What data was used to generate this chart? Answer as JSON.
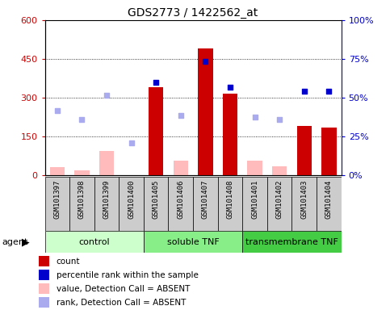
{
  "title": "GDS2773 / 1422562_at",
  "samples": [
    "GSM101397",
    "GSM101398",
    "GSM101399",
    "GSM101400",
    "GSM101405",
    "GSM101406",
    "GSM101407",
    "GSM101408",
    "GSM101401",
    "GSM101402",
    "GSM101403",
    "GSM101404"
  ],
  "groups": [
    {
      "label": "control",
      "start": 0,
      "end": 4,
      "color": "#ccffcc"
    },
    {
      "label": "soluble TNF",
      "start": 4,
      "end": 8,
      "color": "#88ee88"
    },
    {
      "label": "transmembrane TNF",
      "start": 8,
      "end": 12,
      "color": "#44cc44"
    }
  ],
  "count_present": [
    null,
    null,
    null,
    null,
    340,
    null,
    490,
    315,
    null,
    null,
    190,
    185
  ],
  "count_absent": [
    30,
    18,
    95,
    null,
    null,
    55,
    null,
    null,
    55,
    35,
    null,
    null
  ],
  "rank_present": [
    null,
    null,
    null,
    null,
    360,
    null,
    440,
    340,
    null,
    null,
    325,
    325
  ],
  "rank_absent": [
    250,
    215,
    310,
    125,
    null,
    230,
    null,
    null,
    225,
    215,
    null,
    null
  ],
  "left_ticks": [
    0,
    150,
    300,
    450,
    600
  ],
  "left_tick_labels": [
    "0",
    "150",
    "300",
    "450",
    "600"
  ],
  "right_tick_labels": [
    "0%",
    "25%",
    "50%",
    "75%",
    "100%"
  ],
  "bar_color_present": "#cc0000",
  "bar_color_absent": "#ffbbbb",
  "dot_color_present": "#0000cc",
  "dot_color_absent": "#aaaaee",
  "ylabel_left_color": "#cc0000",
  "ylabel_right_color": "#0000cc",
  "sample_bg": "#cccccc",
  "legend_items": [
    {
      "color": "#cc0000",
      "label": "count"
    },
    {
      "color": "#0000cc",
      "label": "percentile rank within the sample"
    },
    {
      "color": "#ffbbbb",
      "label": "value, Detection Call = ABSENT"
    },
    {
      "color": "#aaaaee",
      "label": "rank, Detection Call = ABSENT"
    }
  ]
}
